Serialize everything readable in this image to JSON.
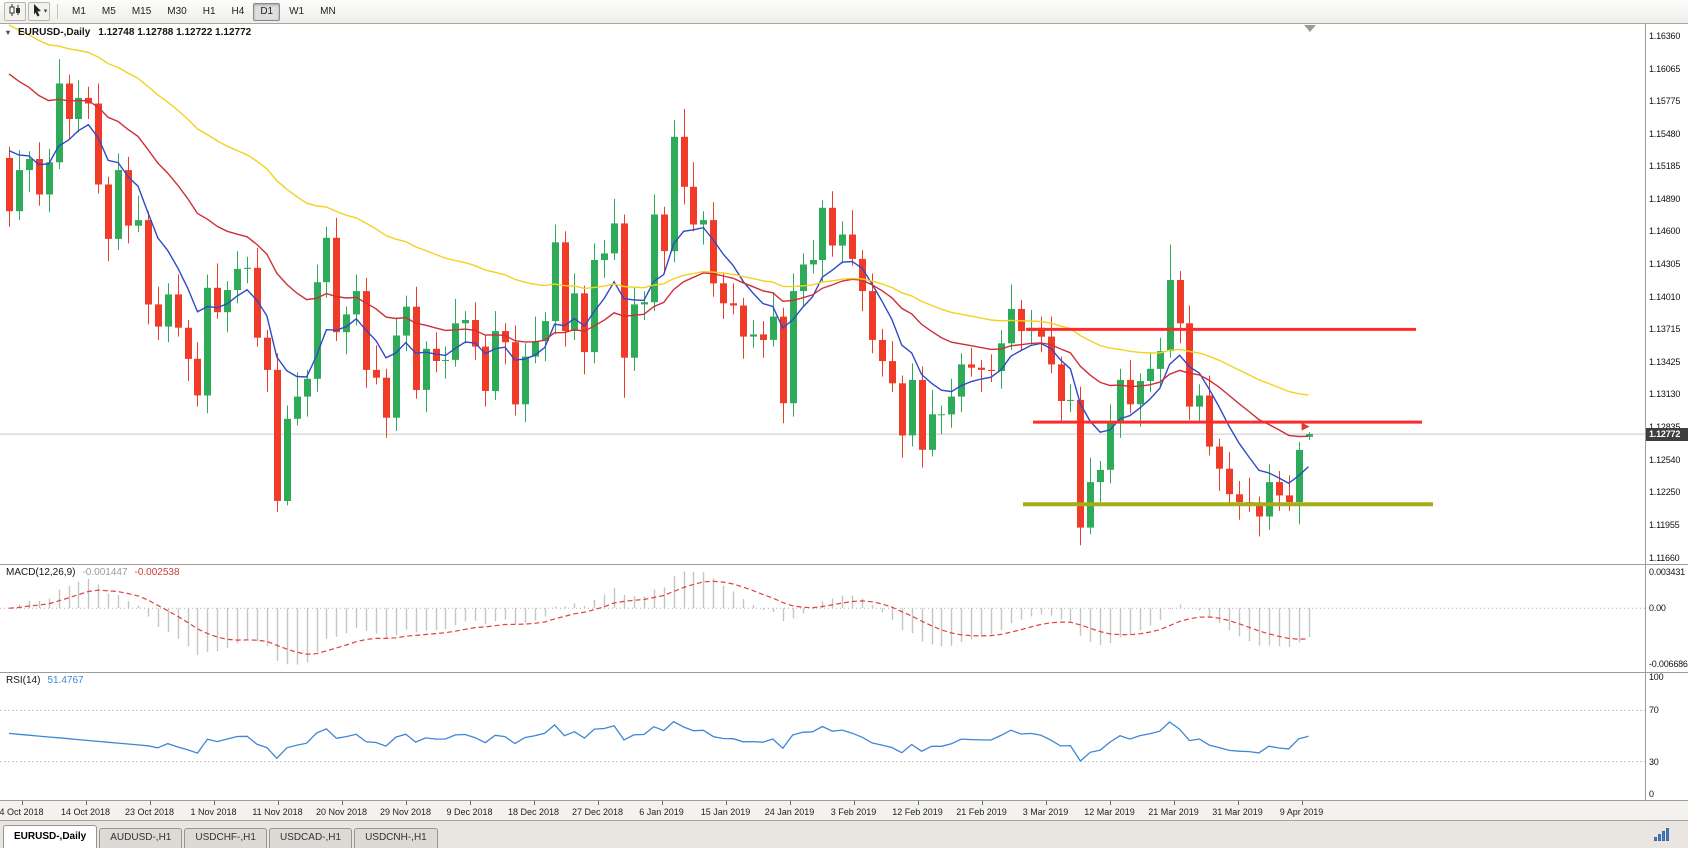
{
  "toolbar": {
    "timeframes": [
      "M1",
      "M5",
      "M15",
      "M30",
      "H1",
      "H4",
      "D1",
      "W1",
      "MN"
    ],
    "active_timeframe": "D1"
  },
  "chart": {
    "title": "EURUSD-,Daily",
    "ohlc_display": "1.12748 1.12788 1.12722 1.12772",
    "current_price": "1.12772"
  },
  "macd": {
    "label": "MACD(12,26,9)",
    "value_main": "-0.001447",
    "value_signal": "-0.002538"
  },
  "rsi": {
    "label": "RSI(14)",
    "value": "51.4767"
  },
  "tabs": {
    "items": [
      "EURUSD-,Daily",
      "AUDUSD-,H1",
      "USDCHF-,H1",
      "USDCAD-,H1",
      "USDCNH-,H1"
    ],
    "active": "EURUSD-,Daily"
  },
  "chart_data": {
    "type": "candlestick",
    "symbol": "EURUSD-",
    "period": "Daily",
    "last_ohlc": {
      "open": 1.12748,
      "high": 1.12788,
      "low": 1.12722,
      "close": 1.12772
    },
    "price_range": {
      "max": 1.16466,
      "min": 1.11602
    },
    "current_price_line": 1.12772,
    "y_axis_ticks": [
      "1.16360",
      "1.16065",
      "1.15775",
      "1.15480",
      "1.15185",
      "1.14890",
      "1.14600",
      "1.14305",
      "1.14010",
      "1.13715",
      "1.13425",
      "1.13130",
      "1.12835",
      "1.12540",
      "1.12250",
      "1.11955",
      "1.11660"
    ],
    "x_axis_ticks": [
      "4 Oct 2018",
      "14 Oct 2018",
      "23 Oct 2018",
      "1 Nov 2018",
      "11 Nov 2018",
      "20 Nov 2018",
      "29 Nov 2018",
      "9 Dec 2018",
      "18 Dec 2018",
      "27 Dec 2018",
      "6 Jan 2019",
      "15 Jan 2019",
      "24 Jan 2019",
      "3 Feb 2019",
      "12 Feb 2019",
      "21 Feb 2019",
      "3 Mar 2019",
      "12 Mar 2019",
      "21 Mar 2019",
      "31 Mar 2019",
      "9 Apr 2019"
    ],
    "candles": [
      [
        1.1526,
        1.1536,
        1.1464,
        1.1478
      ],
      [
        1.1478,
        1.1533,
        1.147,
        1.1515
      ],
      [
        1.1515,
        1.1532,
        1.1495,
        1.1525
      ],
      [
        1.1525,
        1.154,
        1.1483,
        1.1493
      ],
      [
        1.1493,
        1.1534,
        1.1477,
        1.1522
      ],
      [
        1.1522,
        1.1615,
        1.1516,
        1.1593
      ],
      [
        1.1593,
        1.1601,
        1.1543,
        1.1561
      ],
      [
        1.1561,
        1.1596,
        1.1549,
        1.158
      ],
      [
        1.158,
        1.159,
        1.1561,
        1.1575
      ],
      [
        1.1575,
        1.1593,
        1.1494,
        1.1502
      ],
      [
        1.1502,
        1.1509,
        1.1433,
        1.1453
      ],
      [
        1.1453,
        1.153,
        1.1443,
        1.1515
      ],
      [
        1.1515,
        1.1527,
        1.1449,
        1.1465
      ],
      [
        1.1465,
        1.1492,
        1.1459,
        1.147
      ],
      [
        1.147,
        1.1478,
        1.1376,
        1.1394
      ],
      [
        1.1394,
        1.141,
        1.1362,
        1.1374
      ],
      [
        1.1374,
        1.1413,
        1.136,
        1.1403
      ],
      [
        1.1403,
        1.1421,
        1.1365,
        1.1373
      ],
      [
        1.1373,
        1.138,
        1.1325,
        1.1345
      ],
      [
        1.1345,
        1.136,
        1.1302,
        1.1312
      ],
      [
        1.1312,
        1.1421,
        1.1296,
        1.1409
      ],
      [
        1.1409,
        1.1431,
        1.1381,
        1.1387
      ],
      [
        1.1387,
        1.1415,
        1.1369,
        1.1407
      ],
      [
        1.1407,
        1.1442,
        1.1395,
        1.1426
      ],
      [
        1.1426,
        1.1437,
        1.1413,
        1.1427
      ],
      [
        1.1427,
        1.1445,
        1.1356,
        1.1364
      ],
      [
        1.1364,
        1.1371,
        1.1315,
        1.1335
      ],
      [
        1.1335,
        1.135,
        1.1207,
        1.1217
      ],
      [
        1.1217,
        1.1303,
        1.1213,
        1.1291
      ],
      [
        1.1291,
        1.1333,
        1.1285,
        1.1311
      ],
      [
        1.1311,
        1.1335,
        1.1293,
        1.1327
      ],
      [
        1.1327,
        1.143,
        1.1315,
        1.1414
      ],
      [
        1.1414,
        1.1464,
        1.14,
        1.1454
      ],
      [
        1.1454,
        1.1472,
        1.1361,
        1.1369
      ],
      [
        1.1369,
        1.1392,
        1.1349,
        1.1385
      ],
      [
        1.1385,
        1.1421,
        1.1375,
        1.1406
      ],
      [
        1.1406,
        1.1418,
        1.1319,
        1.1335
      ],
      [
        1.1335,
        1.1357,
        1.1322,
        1.1328
      ],
      [
        1.1328,
        1.1336,
        1.1274,
        1.1292
      ],
      [
        1.1292,
        1.1382,
        1.128,
        1.1366
      ],
      [
        1.1366,
        1.1402,
        1.1352,
        1.1392
      ],
      [
        1.1392,
        1.141,
        1.1309,
        1.1317
      ],
      [
        1.1317,
        1.1361,
        1.1297,
        1.1354
      ],
      [
        1.1354,
        1.1369,
        1.1333,
        1.1343
      ],
      [
        1.1343,
        1.1356,
        1.1327,
        1.1344
      ],
      [
        1.1344,
        1.1399,
        1.1338,
        1.1377
      ],
      [
        1.1377,
        1.1388,
        1.1359,
        1.138
      ],
      [
        1.138,
        1.1396,
        1.1344,
        1.1356
      ],
      [
        1.1356,
        1.1366,
        1.1302,
        1.1316
      ],
      [
        1.1316,
        1.1388,
        1.1308,
        1.137
      ],
      [
        1.137,
        1.1377,
        1.134,
        1.136
      ],
      [
        1.136,
        1.1375,
        1.1294,
        1.1304
      ],
      [
        1.1304,
        1.1359,
        1.1288,
        1.1347
      ],
      [
        1.1347,
        1.1383,
        1.1341,
        1.1361
      ],
      [
        1.1361,
        1.1387,
        1.1343,
        1.1379
      ],
      [
        1.1379,
        1.1466,
        1.1367,
        1.145
      ],
      [
        1.145,
        1.146,
        1.1356,
        1.137
      ],
      [
        1.137,
        1.1422,
        1.1362,
        1.1404
      ],
      [
        1.1404,
        1.1411,
        1.1331,
        1.1351
      ],
      [
        1.1351,
        1.1449,
        1.1341,
        1.1434
      ],
      [
        1.1434,
        1.1452,
        1.1418,
        1.144
      ],
      [
        1.144,
        1.1489,
        1.1434,
        1.1467
      ],
      [
        1.1467,
        1.1475,
        1.131,
        1.1346
      ],
      [
        1.1346,
        1.141,
        1.1334,
        1.1394
      ],
      [
        1.1394,
        1.1406,
        1.138,
        1.1396
      ],
      [
        1.1396,
        1.1493,
        1.1388,
        1.1475
      ],
      [
        1.1475,
        1.1482,
        1.1422,
        1.1442
      ],
      [
        1.1442,
        1.156,
        1.1432,
        1.1545
      ],
      [
        1.1545,
        1.157,
        1.1484,
        1.15
      ],
      [
        1.15,
        1.1522,
        1.146,
        1.1466
      ],
      [
        1.1466,
        1.1478,
        1.1448,
        1.147
      ],
      [
        1.147,
        1.1486,
        1.1401,
        1.1413
      ],
      [
        1.1413,
        1.1423,
        1.1381,
        1.1395
      ],
      [
        1.1395,
        1.1413,
        1.1385,
        1.1393
      ],
      [
        1.1393,
        1.14,
        1.1345,
        1.1365
      ],
      [
        1.1365,
        1.138,
        1.1355,
        1.1367
      ],
      [
        1.1367,
        1.1379,
        1.1346,
        1.1362
      ],
      [
        1.1362,
        1.1405,
        1.1356,
        1.1383
      ],
      [
        1.1383,
        1.1391,
        1.1287,
        1.1305
      ],
      [
        1.1305,
        1.1422,
        1.1293,
        1.1406
      ],
      [
        1.1406,
        1.144,
        1.1392,
        1.143
      ],
      [
        1.143,
        1.1452,
        1.1422,
        1.1434
      ],
      [
        1.1434,
        1.1488,
        1.1414,
        1.1481
      ],
      [
        1.1481,
        1.1496,
        1.1437,
        1.1447
      ],
      [
        1.1447,
        1.1469,
        1.1431,
        1.1457
      ],
      [
        1.1457,
        1.1479,
        1.1429,
        1.1435
      ],
      [
        1.1435,
        1.1443,
        1.1388,
        1.1406
      ],
      [
        1.1406,
        1.1422,
        1.135,
        1.1362
      ],
      [
        1.1362,
        1.1372,
        1.1329,
        1.1343
      ],
      [
        1.1343,
        1.1361,
        1.1315,
        1.1323
      ],
      [
        1.1323,
        1.133,
        1.1256,
        1.1276
      ],
      [
        1.1276,
        1.1341,
        1.1266,
        1.1326
      ],
      [
        1.1326,
        1.1338,
        1.1247,
        1.1263
      ],
      [
        1.1263,
        1.1317,
        1.1257,
        1.1295
      ],
      [
        1.1295,
        1.1303,
        1.1277,
        1.1295
      ],
      [
        1.1295,
        1.1327,
        1.1283,
        1.1311
      ],
      [
        1.1311,
        1.135,
        1.1297,
        1.134
      ],
      [
        1.134,
        1.1355,
        1.1329,
        1.1337
      ],
      [
        1.1337,
        1.1344,
        1.1315,
        1.1335
      ],
      [
        1.1335,
        1.1349,
        1.1324,
        1.1334
      ],
      [
        1.1334,
        1.1371,
        1.1318,
        1.1359
      ],
      [
        1.1359,
        1.1412,
        1.1353,
        1.139
      ],
      [
        1.139,
        1.1398,
        1.1352,
        1.137
      ],
      [
        1.137,
        1.1389,
        1.1358,
        1.1373
      ],
      [
        1.1373,
        1.1383,
        1.1351,
        1.1365
      ],
      [
        1.1365,
        1.1383,
        1.1332,
        1.134
      ],
      [
        1.134,
        1.1347,
        1.1287,
        1.1307
      ],
      [
        1.1307,
        1.1322,
        1.1297,
        1.1308
      ],
      [
        1.1308,
        1.132,
        1.1177,
        1.1193
      ],
      [
        1.1193,
        1.1256,
        1.1187,
        1.1234
      ],
      [
        1.1234,
        1.1253,
        1.1216,
        1.1245
      ],
      [
        1.1245,
        1.1304,
        1.1233,
        1.1288
      ],
      [
        1.1288,
        1.1336,
        1.1274,
        1.1326
      ],
      [
        1.1326,
        1.1344,
        1.1296,
        1.1304
      ],
      [
        1.1304,
        1.1332,
        1.1284,
        1.1325
      ],
      [
        1.1325,
        1.1351,
        1.1315,
        1.1336
      ],
      [
        1.1336,
        1.1364,
        1.132,
        1.1352
      ],
      [
        1.1352,
        1.1448,
        1.1346,
        1.1416
      ],
      [
        1.1416,
        1.1424,
        1.1359,
        1.1377
      ],
      [
        1.1377,
        1.1393,
        1.129,
        1.1302
      ],
      [
        1.1302,
        1.1322,
        1.1288,
        1.1312
      ],
      [
        1.1312,
        1.133,
        1.1258,
        1.1266
      ],
      [
        1.1266,
        1.1273,
        1.1226,
        1.1246
      ],
      [
        1.1246,
        1.1261,
        1.1213,
        1.1223
      ],
      [
        1.1223,
        1.1235,
        1.12,
        1.1216
      ],
      [
        1.1216,
        1.1238,
        1.1207,
        1.1213
      ],
      [
        1.1213,
        1.1221,
        1.1185,
        1.1203
      ],
      [
        1.1203,
        1.125,
        1.1191,
        1.1234
      ],
      [
        1.1234,
        1.1244,
        1.1208,
        1.1222
      ],
      [
        1.1222,
        1.124,
        1.1208,
        1.1216
      ],
      [
        1.1216,
        1.127,
        1.1196,
        1.1263
      ],
      [
        1.12748,
        1.12788,
        1.12722,
        1.12772
      ]
    ],
    "moving_averages": [
      {
        "name": "ma-fast-blue",
        "period": 8,
        "seed": 1.1548,
        "color": "#2f49c8"
      },
      {
        "name": "ma-mid-red",
        "period": 25,
        "seed": 1.1612,
        "color": "#cf2e38"
      },
      {
        "name": "ma-slow-yellow",
        "period": 55,
        "seed": 1.1652,
        "color": "#f2d21f"
      }
    ],
    "horizontal_lines": [
      {
        "name": "resistance-upper",
        "price": 1.13715,
        "start_index": 102.5,
        "end_index": 141.8,
        "color": "#ff2b2b",
        "width": 3
      },
      {
        "name": "resistance-lower",
        "price": 1.1288,
        "start_index": 103.2,
        "end_index": 142.4,
        "color": "#ff2b2b",
        "width": 3
      },
      {
        "name": "support-olive",
        "price": 1.1214,
        "start_index": 102.2,
        "end_index": 143.5,
        "color": "#a2ad17",
        "width": 4
      }
    ],
    "marker": {
      "index": 130.6,
      "price": 1.1283,
      "color": "#e03a2a"
    },
    "macd": {
      "fast": 12,
      "slow": 26,
      "signal": 9,
      "value_main": -0.001447,
      "value_signal": -0.002538,
      "scale_ticks": [
        "0.003431",
        "0.00",
        "-0.006686"
      ]
    },
    "rsi": {
      "period": 14,
      "value": 51.4767,
      "levels": [
        70,
        30
      ],
      "scale_ticks": [
        "100",
        "70",
        "30",
        "0"
      ]
    },
    "colors": {
      "up": "#2eab58",
      "down": "#ef3b28",
      "price_line": "#c9c9c9",
      "macd_hist": "#c4c4c4",
      "macd_signal": "#e04040",
      "rsi_line": "#3e87d6"
    }
  }
}
